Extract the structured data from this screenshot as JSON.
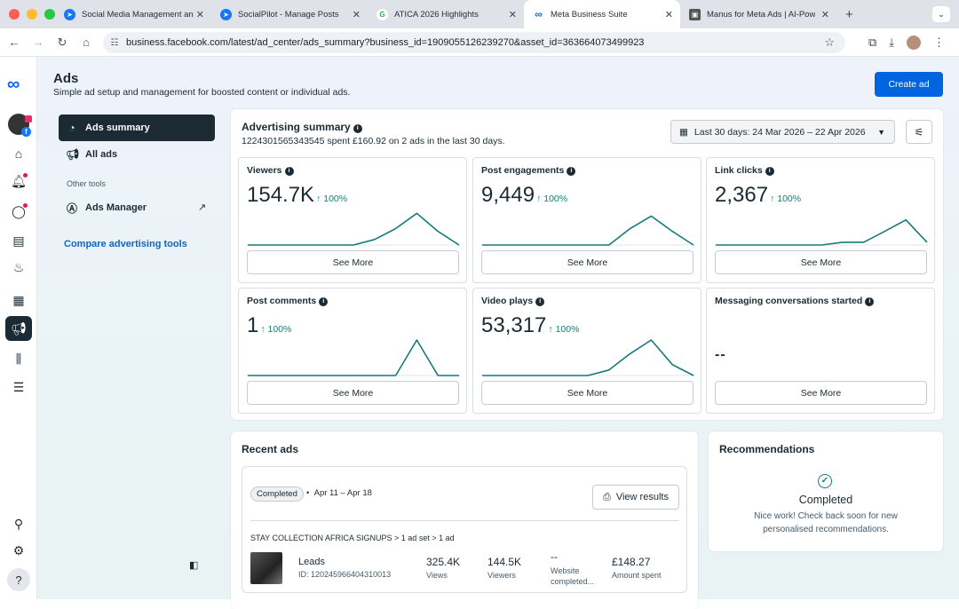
{
  "browser": {
    "tabs": [
      {
        "title": "Social Media Management an",
        "icon_color": "#1877f2",
        "glyph": "➤",
        "active": false
      },
      {
        "title": "SocialPilot - Manage Posts",
        "icon_color": "#1877f2",
        "glyph": "➤",
        "active": false
      },
      {
        "title": "ATICA 2026 Highlights",
        "icon_color": "#ffffff",
        "glyph": "G",
        "active": false
      },
      {
        "title": "Meta Business Suite",
        "icon_color": "#0866ff",
        "glyph": "∞",
        "active": true
      },
      {
        "title": "Manus for Meta Ads | AI-Pow",
        "icon_color": "#555555",
        "glyph": "▣",
        "active": false
      }
    ],
    "new_tab": "+",
    "url": "business.facebook.com/latest/ad_center/ads_summary?business_id=1909055126239270&asset_id=363664073499923"
  },
  "header": {
    "title": "Ads",
    "subtitle": "Simple ad setup and management for boosted content or individual ads.",
    "create_label": "Create ad"
  },
  "sidenav": {
    "ads_summary": "Ads summary",
    "all_ads": "All ads",
    "other_tools": "Other tools",
    "ads_manager": "Ads Manager",
    "compare": "Compare advertising tools"
  },
  "summary": {
    "title": "Advertising summary",
    "subtitle": "1224301565343545 spent £160.92 on 2 ads in the last 30 days.",
    "date_range": "Last 30 days: 24 Mar 2026 – 22 Apr 2026",
    "see_more": "See More",
    "metrics": [
      {
        "label": "Viewers",
        "value": "154.7K",
        "change": "↑ 100%",
        "trend": [
          0,
          0,
          0,
          0,
          0,
          0,
          1,
          3,
          5.8,
          2.5,
          0
        ]
      },
      {
        "label": "Post engagements",
        "value": "9,449",
        "change": "↑ 100%",
        "trend": [
          0,
          0,
          0,
          0,
          0,
          0,
          0,
          3,
          5.3,
          2.5,
          0
        ]
      },
      {
        "label": "Link clicks",
        "value": "2,367",
        "change": "↑ 100%",
        "trend": [
          0,
          0,
          0,
          0,
          0,
          0,
          0.5,
          0.5,
          2.5,
          4.6,
          0.5
        ]
      },
      {
        "label": "Post comments",
        "value": "1",
        "change": "↑ 100%",
        "trend": [
          0,
          0,
          0,
          0,
          0,
          0,
          0,
          0,
          6.5,
          0,
          0
        ]
      },
      {
        "label": "Video plays",
        "value": "53,317",
        "change": "↑ 100%",
        "trend": [
          0,
          0,
          0,
          0,
          0,
          0,
          1,
          4,
          6.5,
          2,
          0
        ]
      },
      {
        "label": "Messaging conversations started",
        "value": "--",
        "change": "",
        "trend": []
      }
    ]
  },
  "recent": {
    "title": "Recent ads",
    "status": "Completed",
    "range": "Apr 11 – Apr 18",
    "view_results": "View results",
    "breadcrumb": "STAY COLLECTION AFRICA SIGNUPS > 1 ad set > 1 ad",
    "ad_name": "Leads",
    "ad_id": "ID: 120245966404310013",
    "stats": [
      {
        "value": "325.4K",
        "label": "Views"
      },
      {
        "value": "144.5K",
        "label": "Viewers"
      },
      {
        "value": "--",
        "label": "Website completed..."
      },
      {
        "value": "£148.27",
        "label": "Amount spent"
      }
    ]
  },
  "recommendations": {
    "title": "Recommendations",
    "status": "Completed",
    "message": "Nice work! Check back soon for new personalised recommendations."
  }
}
